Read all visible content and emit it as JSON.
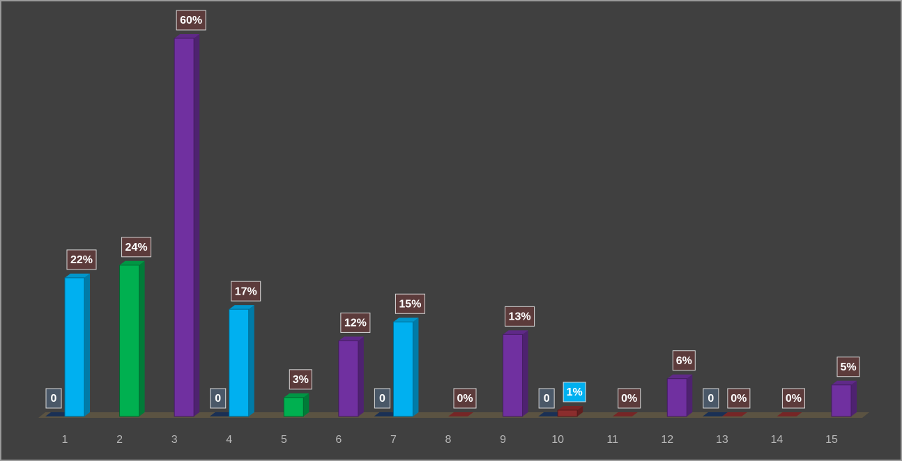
{
  "chart_data": {
    "type": "bar3d",
    "categories": [
      "1",
      "2",
      "3",
      "4",
      "5",
      "6",
      "7",
      "8",
      "9",
      "10",
      "11",
      "12",
      "13",
      "14",
      "15"
    ],
    "series": [
      {
        "color": "#1f3864",
        "label_color": "#4a5868",
        "values": [
          0,
          null,
          null,
          0,
          null,
          null,
          0,
          null,
          null,
          0,
          null,
          null,
          0,
          null,
          null
        ]
      },
      {
        "label_color": "#5c3b3b",
        "colors": [
          "#00b0f0",
          "#00b050",
          "#7030a0",
          "#00b0f0",
          "#00b050",
          "#7030a0",
          "#00b0f0",
          "#8b2d2d",
          "#7030a0",
          "#8b2d2d",
          "#8b2d2d",
          "#7030a0",
          "#8b2d2d",
          "#8b2d2d",
          "#7030a0"
        ],
        "label_colors": [
          "#5c3b3b",
          "#5c3b3b",
          "#5c3b3b",
          "#5c3b3b",
          "#5c3b3b",
          "#5c3b3b",
          "#5c3b3b",
          "#5c3b3b",
          "#5c3b3b",
          "#00b0f0",
          "#5c3b3b",
          "#5c3b3b",
          "#5c3b3b",
          "#5c3b3b",
          "#5c3b3b"
        ],
        "values": [
          22,
          24,
          60,
          17,
          3,
          12,
          15,
          0,
          13,
          1,
          0,
          6,
          0,
          0,
          5
        ],
        "value_labels": [
          "22%",
          "24%",
          "60%",
          "17%",
          "3%",
          "12%",
          "15%",
          "0%",
          "13%",
          "1%",
          "0%",
          "6%",
          "0%",
          "0%",
          "5%"
        ]
      }
    ]
  }
}
